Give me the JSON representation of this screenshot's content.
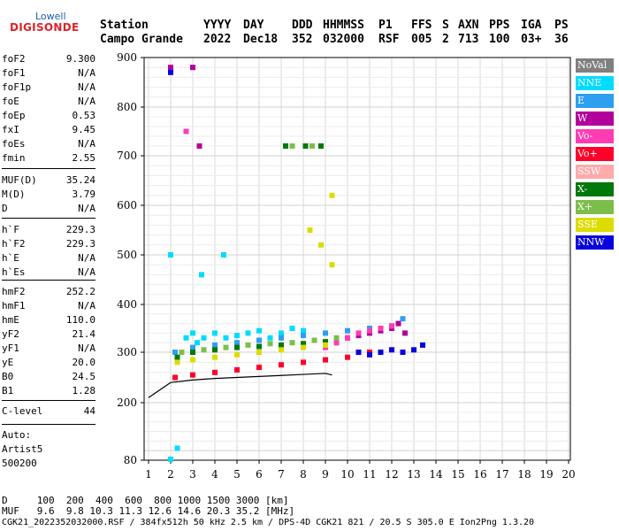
{
  "logo": {
    "line1": "Lowell",
    "line2": "DIGISONDE"
  },
  "header": {
    "row1": [
      {
        "label": "Station"
      },
      {
        "label": "YYYY"
      },
      {
        "label": "DAY"
      },
      {
        "label": "DDD"
      },
      {
        "label": "HHMMSS"
      },
      {
        "label": "P1"
      },
      {
        "label": "FFS"
      },
      {
        "label": "S"
      },
      {
        "label": "AXN"
      },
      {
        "label": "PPS"
      },
      {
        "label": "IGA"
      },
      {
        "label": "PS"
      }
    ],
    "row2": [
      {
        "label": "Campo Grande"
      },
      {
        "label": "2022"
      },
      {
        "label": "Dec18"
      },
      {
        "label": "352"
      },
      {
        "label": "032000"
      },
      {
        "label": "RSF"
      },
      {
        "label": "005"
      },
      {
        "label": "2"
      },
      {
        "label": "713"
      },
      {
        "label": "100"
      },
      {
        "label": "03+"
      },
      {
        "label": "36"
      }
    ]
  },
  "params": {
    "group1": [
      {
        "name": "foF2",
        "value": "9.300"
      },
      {
        "name": "foF1",
        "value": "N/A"
      },
      {
        "name": "foF1p",
        "value": "N/A"
      },
      {
        "name": "foE",
        "value": "N/A"
      },
      {
        "name": "foEp",
        "value": "0.53"
      },
      {
        "name": "fxI",
        "value": "9.45"
      },
      {
        "name": "foEs",
        "value": "N/A"
      },
      {
        "name": "fmin",
        "value": "2.55"
      }
    ],
    "group2": [
      {
        "name": "MUF(D)",
        "value": "35.24"
      },
      {
        "name": "M(D)",
        "value": "3.79"
      },
      {
        "name": "D",
        "value": "N/A"
      }
    ],
    "group3": [
      {
        "name": "h`F",
        "value": "229.3"
      },
      {
        "name": "h`F2",
        "value": "229.3"
      },
      {
        "name": "h`E",
        "value": "N/A"
      },
      {
        "name": "h`Es",
        "value": "N/A"
      }
    ],
    "group4": [
      {
        "name": "hmF2",
        "value": "252.2"
      },
      {
        "name": "hmF1",
        "value": "N/A"
      },
      {
        "name": "hmE",
        "value": "110.0"
      },
      {
        "name": "yF2",
        "value": "21.4"
      },
      {
        "name": "yF1",
        "value": "N/A"
      },
      {
        "name": "yE",
        "value": "20.0"
      },
      {
        "name": "B0",
        "value": "24.5"
      },
      {
        "name": "B1",
        "value": "1.28"
      }
    ],
    "group5": [
      {
        "name": "C-level",
        "value": "44"
      }
    ]
  },
  "autoscaling": {
    "line1": "Auto:",
    "line2": "Artist5",
    "line3": "500200"
  },
  "legend": [
    {
      "label": "NoVal",
      "color": "#808080"
    },
    {
      "label": "NNE",
      "color": "#00dcff"
    },
    {
      "label": "E",
      "color": "#2d9ff0"
    },
    {
      "label": "W",
      "color": "#b4009b"
    },
    {
      "label": "Vo-",
      "color": "#ff3cb4"
    },
    {
      "label": "Vo+",
      "color": "#ff0028"
    },
    {
      "label": "SSW",
      "color": "#ffaaaa"
    },
    {
      "label": "X-",
      "color": "#00780a"
    },
    {
      "label": "X+",
      "color": "#7dbe4b"
    },
    {
      "label": "SSE",
      "color": "#dcdc00"
    },
    {
      "label": "NNW",
      "color": "#0a00dc"
    }
  ],
  "footer": {
    "row_d": "D     100  200  400  600  800 1000 1500 3000 [km]",
    "row_muf": "MUF   9.6  9.8 10.3 11.3 12.6 14.6 20.3 35.2 [MHz]",
    "file_line": "CGK21_2022352032000.RSF / 384fx512h 50 kHz 2.5 km / DPS-4D CGK21 821 / 20.5 S 305.0 E Ion2Png 1.3.20"
  },
  "chart_data": {
    "type": "scatter",
    "title": "",
    "xlabel": "",
    "ylabel": "",
    "xlim": [
      0.5,
      20
    ],
    "ylim": [
      80,
      900
    ],
    "x_ticks": [
      1,
      2,
      3,
      4,
      5,
      6,
      7,
      8,
      9,
      10,
      11,
      12,
      13,
      14,
      15,
      16,
      17,
      18,
      19,
      20
    ],
    "y_ticks": [
      80,
      200,
      300,
      400,
      500,
      600,
      700,
      800,
      900
    ],
    "grid": true,
    "legend_position": "right",
    "series": [
      {
        "name": "NNE",
        "color": "#00dcff",
        "points": [
          [
            2.7,
            330
          ],
          [
            3.0,
            340
          ],
          [
            3.2,
            320
          ],
          [
            3.5,
            330
          ],
          [
            4.0,
            340
          ],
          [
            4.5,
            330
          ],
          [
            5.0,
            335
          ],
          [
            5.5,
            340
          ],
          [
            6.0,
            345
          ],
          [
            6.5,
            330
          ],
          [
            7.0,
            340
          ],
          [
            7.5,
            350
          ],
          [
            8.0,
            345
          ],
          [
            2.0,
            500
          ],
          [
            3.4,
            460
          ],
          [
            4.4,
            500
          ],
          [
            2.3,
            105.0
          ],
          [
            2.0,
            82
          ]
        ]
      },
      {
        "name": "E",
        "color": "#2d9ff0",
        "points": [
          [
            2.2,
            300
          ],
          [
            3.0,
            310
          ],
          [
            4.0,
            315
          ],
          [
            5.0,
            320
          ],
          [
            6.0,
            325
          ],
          [
            7.0,
            330
          ],
          [
            8.0,
            335
          ],
          [
            9.0,
            340
          ],
          [
            10.0,
            345
          ],
          [
            11.0,
            350
          ],
          [
            12.0,
            355
          ],
          [
            12.5,
            370
          ]
        ]
      },
      {
        "name": "W",
        "color": "#b4009b",
        "points": [
          [
            9.5,
            320
          ],
          [
            10,
            330
          ],
          [
            10.5,
            335
          ],
          [
            11,
            340
          ],
          [
            11.5,
            345
          ],
          [
            12,
            350
          ],
          [
            12.3,
            360
          ],
          [
            12.6,
            340
          ],
          [
            2.0,
            880
          ],
          [
            3.0,
            880
          ],
          [
            3.3,
            720
          ]
        ]
      },
      {
        "name": "Vo-",
        "color": "#ff3cb4",
        "points": [
          [
            9.0,
            310
          ],
          [
            9.5,
            320
          ],
          [
            10,
            330
          ],
          [
            10.5,
            340
          ],
          [
            11,
            345
          ],
          [
            11.5,
            350
          ],
          [
            12,
            355
          ],
          [
            2.7,
            750
          ]
        ]
      },
      {
        "name": "Vo+",
        "color": "#ff0028",
        "points": [
          [
            2.2,
            250
          ],
          [
            3.0,
            255
          ],
          [
            4.0,
            260
          ],
          [
            5.0,
            265
          ],
          [
            6.0,
            270
          ],
          [
            7.0,
            275
          ],
          [
            8.0,
            280
          ],
          [
            9.0,
            285
          ],
          [
            10.0,
            290
          ],
          [
            11.0,
            300
          ]
        ]
      },
      {
        "name": "X-",
        "color": "#00780a",
        "points": [
          [
            2.3,
            290
          ],
          [
            3.0,
            300
          ],
          [
            4.0,
            305
          ],
          [
            5.0,
            310
          ],
          [
            6.0,
            312
          ],
          [
            7.0,
            315
          ],
          [
            8.0,
            318
          ],
          [
            9.0,
            322
          ],
          [
            7.2,
            720
          ],
          [
            8.1,
            720
          ],
          [
            8.8,
            720
          ]
        ]
      },
      {
        "name": "X+",
        "color": "#7dbe4b",
        "points": [
          [
            2.5,
            300
          ],
          [
            3.5,
            305
          ],
          [
            4.5,
            310
          ],
          [
            5.5,
            315
          ],
          [
            6.5,
            318
          ],
          [
            7.5,
            320
          ],
          [
            8.5,
            325
          ],
          [
            9.5,
            330
          ],
          [
            7.5,
            720
          ],
          [
            8.4,
            720
          ]
        ]
      },
      {
        "name": "SSE",
        "color": "#dcdc00",
        "points": [
          [
            2.3,
            280
          ],
          [
            3.0,
            285
          ],
          [
            4.0,
            290
          ],
          [
            5.0,
            295
          ],
          [
            6.0,
            300
          ],
          [
            7.0,
            305
          ],
          [
            8.0,
            310
          ],
          [
            9.0,
            315
          ],
          [
            8.3,
            550
          ],
          [
            8.8,
            520
          ],
          [
            9.3,
            480
          ],
          [
            9.3,
            620
          ]
        ]
      },
      {
        "name": "NNW",
        "color": "#0a00dc",
        "points": [
          [
            10.5,
            300
          ],
          [
            11,
            295
          ],
          [
            11.5,
            300
          ],
          [
            12,
            305
          ],
          [
            12.5,
            300
          ],
          [
            13,
            305
          ],
          [
            13.4,
            315
          ],
          [
            2.0,
            870
          ]
        ]
      }
    ],
    "trace": [
      [
        1.0,
        210
      ],
      [
        2.0,
        240
      ],
      [
        3.0,
        245
      ],
      [
        4.0,
        248
      ],
      [
        5.0,
        250
      ],
      [
        6.0,
        252
      ],
      [
        7.0,
        254
      ],
      [
        8.0,
        256
      ],
      [
        9.0,
        258
      ],
      [
        9.3,
        255
      ]
    ]
  }
}
